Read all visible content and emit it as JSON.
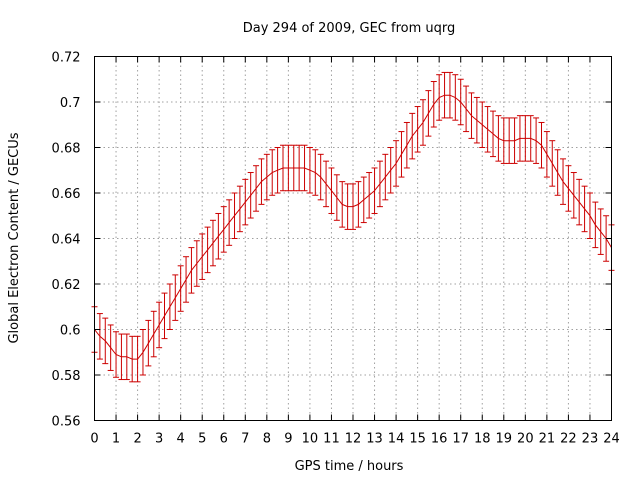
{
  "chart_data": {
    "type": "line",
    "title": "Day 294 of 2009, GEC from uqrg",
    "xlabel": "GPS time / hours",
    "ylabel": "Global Electron Content / GECUs",
    "xlim": [
      0,
      24
    ],
    "ylim": [
      0.56,
      0.72
    ],
    "xticks": [
      0,
      1,
      2,
      3,
      4,
      5,
      6,
      7,
      8,
      9,
      10,
      11,
      12,
      13,
      14,
      15,
      16,
      17,
      18,
      19,
      20,
      21,
      22,
      23,
      24
    ],
    "yticks": [
      0.56,
      0.58,
      0.6,
      0.62,
      0.64,
      0.66,
      0.68,
      0.7,
      0.72
    ],
    "ytick_labels": [
      "0.56",
      "0.58",
      "0.6",
      "0.62",
      "0.64",
      "0.66",
      "0.68",
      "0.7",
      "0.72"
    ],
    "grid": true,
    "color": "#cc0000",
    "series": [
      {
        "name": "GEC",
        "error": 0.01,
        "x": [
          0,
          0.25,
          0.5,
          0.75,
          1,
          1.25,
          1.5,
          1.75,
          2,
          2.25,
          2.5,
          2.75,
          3,
          3.25,
          3.5,
          3.75,
          4,
          4.25,
          4.5,
          4.75,
          5,
          5.25,
          5.5,
          5.75,
          6,
          6.25,
          6.5,
          6.75,
          7,
          7.25,
          7.5,
          7.75,
          8,
          8.25,
          8.5,
          8.75,
          9,
          9.25,
          9.5,
          9.75,
          10,
          10.25,
          10.5,
          10.75,
          11,
          11.25,
          11.5,
          11.75,
          12,
          12.25,
          12.5,
          12.75,
          13,
          13.25,
          13.5,
          13.75,
          14,
          14.25,
          14.5,
          14.75,
          15,
          15.25,
          15.5,
          15.75,
          16,
          16.25,
          16.5,
          16.75,
          17,
          17.25,
          17.5,
          17.75,
          18,
          18.25,
          18.5,
          18.75,
          19,
          19.25,
          19.5,
          19.75,
          20,
          20.25,
          20.5,
          20.75,
          21,
          21.25,
          21.5,
          21.75,
          22,
          22.25,
          22.5,
          22.75,
          23,
          23.25,
          23.5,
          23.75,
          24
        ],
        "y": [
          0.6,
          0.597,
          0.595,
          0.592,
          0.589,
          0.588,
          0.588,
          0.587,
          0.587,
          0.59,
          0.594,
          0.598,
          0.602,
          0.606,
          0.61,
          0.614,
          0.618,
          0.622,
          0.626,
          0.629,
          0.632,
          0.635,
          0.638,
          0.641,
          0.644,
          0.647,
          0.65,
          0.653,
          0.656,
          0.659,
          0.662,
          0.665,
          0.667,
          0.669,
          0.67,
          0.671,
          0.671,
          0.671,
          0.671,
          0.671,
          0.67,
          0.669,
          0.667,
          0.664,
          0.661,
          0.658,
          0.655,
          0.654,
          0.654,
          0.655,
          0.657,
          0.659,
          0.661,
          0.664,
          0.667,
          0.67,
          0.673,
          0.677,
          0.681,
          0.685,
          0.688,
          0.691,
          0.695,
          0.699,
          0.702,
          0.703,
          0.703,
          0.702,
          0.7,
          0.697,
          0.694,
          0.692,
          0.69,
          0.688,
          0.686,
          0.684,
          0.683,
          0.683,
          0.683,
          0.684,
          0.684,
          0.684,
          0.683,
          0.681,
          0.677,
          0.673,
          0.669,
          0.665,
          0.662,
          0.659,
          0.656,
          0.653,
          0.65,
          0.646,
          0.643,
          0.64,
          0.636
        ]
      }
    ]
  }
}
